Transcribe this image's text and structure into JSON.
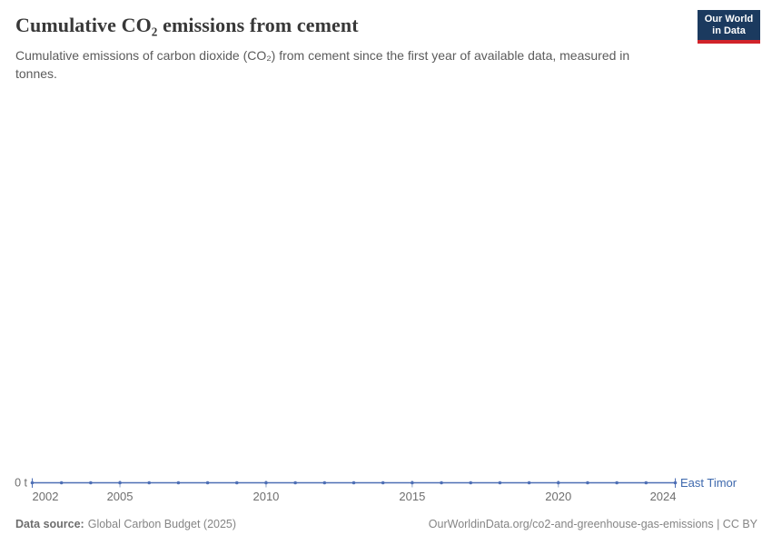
{
  "header": {
    "title": "Cumulative CO₂ emissions from cement",
    "subtitle": "Cumulative emissions of carbon dioxide (CO₂) from cement since the first year of available data, measured in tonnes.",
    "logo": {
      "line1": "Our World",
      "line2": "in Data"
    }
  },
  "chart_data": {
    "type": "line",
    "title": "Cumulative CO₂ emissions from cement",
    "entity": "East Timor",
    "unit": "t",
    "x": [
      2002,
      2003,
      2004,
      2005,
      2006,
      2007,
      2008,
      2009,
      2010,
      2011,
      2012,
      2013,
      2014,
      2015,
      2016,
      2017,
      2018,
      2019,
      2020,
      2021,
      2022,
      2023,
      2024
    ],
    "values": [
      0,
      0,
      0,
      0,
      0,
      0,
      0,
      0,
      0,
      0,
      0,
      0,
      0,
      0,
      0,
      0,
      0,
      0,
      0,
      0,
      0,
      0,
      0
    ],
    "x_ticks": [
      2002,
      2005,
      2010,
      2015,
      2020,
      2024
    ],
    "y_tick_label": "0 t",
    "ylim": [
      0,
      0
    ],
    "grid": false,
    "legend_position": "right-of-line",
    "series_color": "#4e6fb5",
    "tick_color": "#8fa3c6",
    "axis_label_color": "#6e6e6e",
    "entity_label_color": "#3d68ad"
  },
  "footer": {
    "source_label": "Data source:",
    "source_value": "Global Carbon Budget (2025)",
    "link": "OurWorldinData.org/co2-and-greenhouse-gas-emissions | CC BY"
  }
}
